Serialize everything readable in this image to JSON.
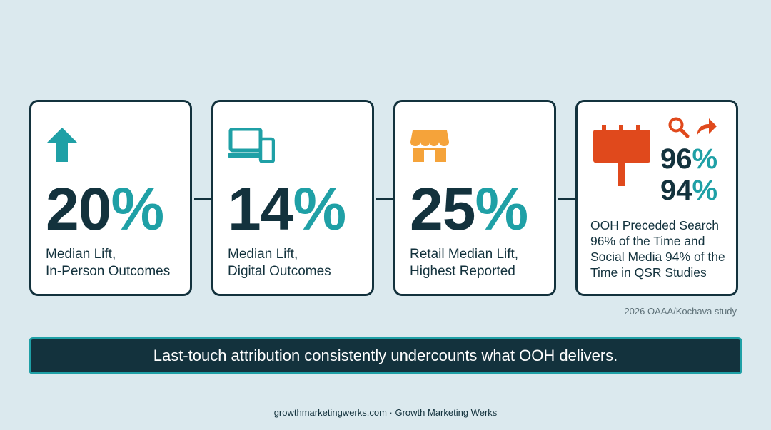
{
  "cards": [
    {
      "value": "20",
      "unit": "%",
      "label_line1": "Median Lift,",
      "label_line2": "In-Person Outcomes",
      "icon": "arrow-up-icon"
    },
    {
      "value": "14",
      "unit": "%",
      "label_line1": "Median Lift,",
      "label_line2": "Digital Outcomes",
      "icon": "devices-icon"
    },
    {
      "value": "25",
      "unit": "%",
      "label_line1": "Retail Median Lift,",
      "label_line2": "Highest Reported",
      "icon": "storefront-icon"
    }
  ],
  "card4": {
    "stat1_value": "96",
    "stat1_unit": "%",
    "stat2_value": "94",
    "stat2_unit": "%",
    "label_lines": [
      "OOH Preceded Search",
      "96% of the Time and",
      "Social Media 94% of the",
      "Time in QSR Studies"
    ],
    "icons": [
      "billboard-icon",
      "search-icon",
      "share-arrow-icon"
    ]
  },
  "source": "2026 OAAA/Kochava study",
  "banner": "Last-touch attribution consistently undercounts what OOH delivers.",
  "footer": "growthmarketingwerks.com · Growth Marketing Werks",
  "colors": {
    "navy": "#13323d",
    "teal": "#1fa0a6",
    "orange": "#f5a33a",
    "red": "#e0491c",
    "background": "#dbe9ee"
  }
}
